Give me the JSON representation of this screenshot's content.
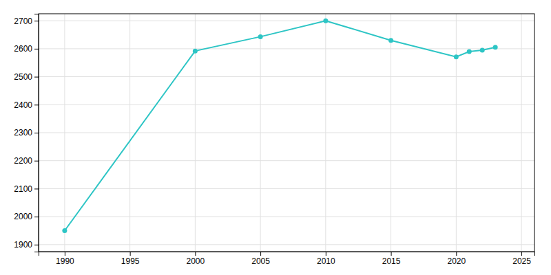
{
  "chart_data": {
    "type": "line",
    "x": [
      1990,
      2000,
      2005,
      2010,
      2015,
      2020,
      2021,
      2022,
      2023
    ],
    "values": [
      1950,
      2592,
      2643,
      2700,
      2630,
      2571,
      2590,
      2595,
      2605
    ],
    "color": "#2DC5C5",
    "marker": "circle",
    "xlim": [
      1988,
      2026
    ],
    "ylim": [
      1875,
      2725
    ],
    "xticks": [
      1990,
      1995,
      2000,
      2005,
      2010,
      2015,
      2020,
      2025
    ],
    "yticks": [
      1900,
      2000,
      2100,
      2200,
      2300,
      2400,
      2500,
      2600,
      2700
    ],
    "grid": true
  }
}
